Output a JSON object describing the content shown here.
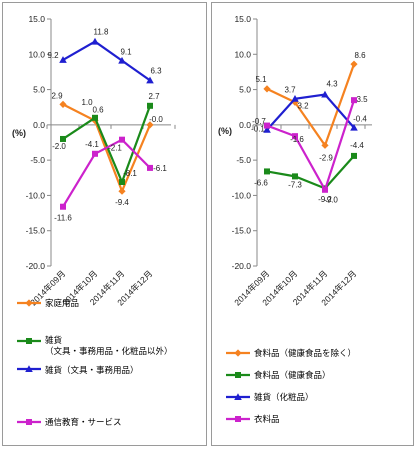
{
  "chart_data": [
    {
      "type": "line",
      "categories": [
        "2014年09月",
        "2014年10月",
        "2014年11月",
        "2014年12月"
      ],
      "ylabel": "(%)",
      "ylim": [
        -20,
        15
      ],
      "yticks": [
        "15.0",
        "10.0",
        "5.0",
        "0.0",
        "-5.0",
        "-10.0",
        "-15.0",
        "-20.0"
      ],
      "grid": false,
      "legend": "bottom",
      "series": [
        {
          "name": "家庭用品",
          "legend_lines": [
            "家庭用品"
          ],
          "color": "#f58220",
          "marker": "diamond",
          "values": [
            2.9,
            0.6,
            -9.4,
            -0.0
          ],
          "labels": [
            "2.9",
            "0.6",
            "-9.4",
            "-0.0"
          ]
        },
        {
          "name": "雑貨（文具・事務用品・化粧品以外）",
          "legend_lines": [
            "雑貨",
            "（文具・事務用品・化粧品以外）"
          ],
          "color": "#1a8a1a",
          "marker": "square",
          "values": [
            -2.0,
            1.0,
            -8.1,
            2.7
          ],
          "labels": [
            "-2.0",
            "1.0",
            "-8.1",
            "2.7"
          ]
        },
        {
          "name": "雑貨（文具・事務用品）",
          "legend_lines": [
            "雑貨（文具・事務用品）"
          ],
          "color": "#1f1fd0",
          "marker": "triangle",
          "values": [
            9.2,
            11.8,
            9.1,
            6.3
          ],
          "labels": [
            "9.2",
            "11.8",
            "9.1",
            "6.3"
          ]
        },
        {
          "name": "通信教育・サービス",
          "legend_lines": [
            "通信教育・サービス"
          ],
          "color": "#cc22cc",
          "marker": "square",
          "values": [
            -11.6,
            -4.1,
            -2.1,
            -6.1
          ],
          "labels": [
            "-11.6",
            "-4.1",
            "-2.1",
            "-6.1"
          ]
        }
      ]
    },
    {
      "type": "line",
      "categories": [
        "2014年09月",
        "2014年10月",
        "2014年11月",
        "2014年12月"
      ],
      "ylabel": "(%)",
      "ylim": [
        -20,
        15
      ],
      "yticks": [
        "15.0",
        "10.0",
        "5.0",
        "0.0",
        "-5.0",
        "-10.0",
        "-15.0",
        "-20.0"
      ],
      "grid": false,
      "legend": "bottom",
      "series": [
        {
          "name": "食料品（健康食品を除く）",
          "legend_lines": [
            "食料品（健康食品を除く）"
          ],
          "color": "#f58220",
          "marker": "diamond",
          "values": [
            5.1,
            3.2,
            -2.9,
            8.6
          ],
          "labels": [
            "5.1",
            "3.2",
            "-2.9",
            "8.6"
          ]
        },
        {
          "name": "食料品（健康食品）",
          "legend_lines": [
            "食料品（健康食品）"
          ],
          "color": "#1a8a1a",
          "marker": "square",
          "values": [
            -6.6,
            -7.3,
            -9.0,
            -4.4
          ],
          "labels": [
            "-6.6",
            "-7.3",
            "-9.0",
            "-4.4"
          ]
        },
        {
          "name": "雑貨（化粧品）",
          "legend_lines": [
            "雑貨（化粧品）"
          ],
          "color": "#1f1fd0",
          "marker": "triangle",
          "values": [
            -0.7,
            3.7,
            4.3,
            -0.4
          ],
          "labels": [
            "-0.7",
            "3.7",
            "4.3",
            "-0.4"
          ]
        },
        {
          "name": "衣料品",
          "legend_lines": [
            "衣料品"
          ],
          "color": "#cc22cc",
          "marker": "square",
          "values": [
            -0.1,
            -1.6,
            -9.2,
            3.5
          ],
          "labels": [
            "-0.1",
            "-1.6",
            "-9.2",
            "3.5"
          ]
        }
      ]
    }
  ]
}
